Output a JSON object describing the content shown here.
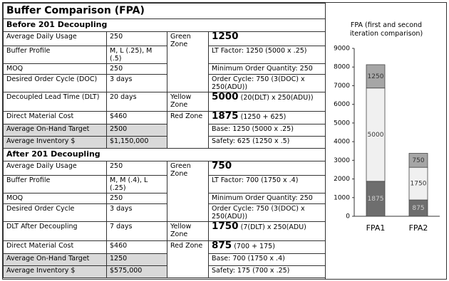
{
  "document": {
    "title": "Buffer Comparison (FPA)",
    "sections": [
      {
        "heading": "Before 201 Decoupling",
        "rows": [
          [
            "Average Daily Usage",
            "250"
          ],
          [
            "Buffer Profile",
            "M, L (.25), M (.5)"
          ],
          [
            "MOQ",
            "250"
          ],
          [
            "Desired Order Cycle (DOC)",
            "3 days"
          ],
          [
            "Decoupled Lead Time (DLT)",
            "20 days"
          ],
          [
            "Direct Material Cost",
            "$460"
          ],
          [
            "Average On-Hand Target",
            "2500"
          ],
          [
            "Average Inventory $",
            "$1,150,000"
          ]
        ],
        "zones": [
          {
            "label": "Green Zone",
            "amount": "1250",
            "lines": [
              "LT Factor: 1250 (5000 x .25)",
              "Minimum Order Quantity: 250",
              "Order Cycle: 750 (3(DOC) x 250(ADU))"
            ]
          },
          {
            "label": "Yellow Zone",
            "amount": "5000",
            "note": "(20(DLT) x 250(ADU))"
          },
          {
            "label": "Red Zone",
            "amount": "1875",
            "note": "(1250 + 625)",
            "lines": [
              "Base: 1250 (5000 x .25)",
              "Safety: 625 (1250 x .5)"
            ]
          }
        ]
      },
      {
        "heading": "After 201 Decoupling",
        "rows": [
          [
            "Average Daily Usage",
            "250"
          ],
          [
            "Buffer Profile",
            "M, M (.4), L (.25)"
          ],
          [
            "MOQ",
            "250"
          ],
          [
            "Desired Order Cycle",
            "3 days"
          ],
          [
            "DLT After Decoupling",
            "7 days"
          ],
          [
            "Direct Material Cost",
            "$460"
          ],
          [
            "Average On-Hand Target",
            "1250"
          ],
          [
            "Average Inventory $",
            "$575,000"
          ]
        ],
        "zones": [
          {
            "label": "Green Zone",
            "amount": "750",
            "lines": [
              "LT Factor: 700 (1750 x .4)",
              "Minimum Order Quantity: 250",
              "Order Cycle: 750 (3(DOC) x 250(ADU))"
            ]
          },
          {
            "label": "Yellow Zone",
            "amount": "1750",
            "note": "(7(DLT) x 250(ADU)"
          },
          {
            "label": "Red Zone",
            "amount": "875",
            "note": "(700 + 175)",
            "lines": [
              "Base: 700 (1750 x .4)",
              "Safety: 175 (700 x .25)"
            ]
          }
        ]
      }
    ]
  },
  "chart_data": {
    "type": "bar",
    "stacked": true,
    "title": "FPA (first and second iteration comparison)",
    "categories": [
      "FPA1",
      "FPA2"
    ],
    "series": [
      {
        "color": "#6e6e6e",
        "values": [
          1875,
          875
        ]
      },
      {
        "color": "#f0f0f0",
        "values": [
          5000,
          1750
        ]
      },
      {
        "color": "#a6a6a6",
        "values": [
          1250,
          750
        ]
      }
    ],
    "ylim": [
      0,
      9000
    ],
    "yticks": [
      0,
      1000,
      2000,
      3000,
      4000,
      5000,
      6000,
      7000,
      8000,
      9000
    ]
  }
}
